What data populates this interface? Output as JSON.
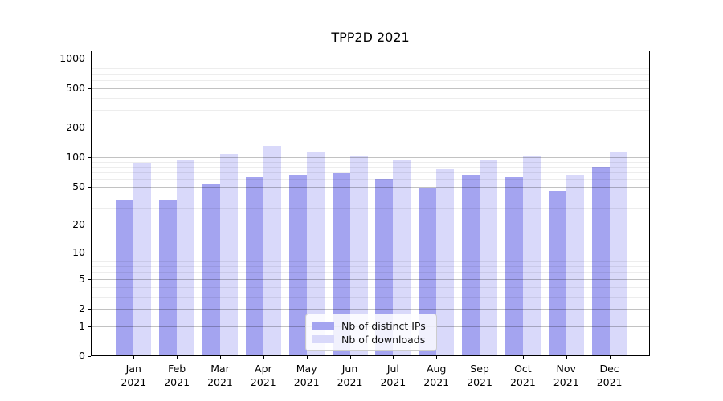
{
  "title": "TPP2D 2021",
  "chart_data": {
    "type": "bar",
    "title": "TPP2D 2021",
    "categories": [
      "Jan 2021",
      "Feb 2021",
      "Mar 2021",
      "Apr 2021",
      "May 2021",
      "Jun 2021",
      "Jul 2021",
      "Aug 2021",
      "Sep 2021",
      "Oct 2021",
      "Nov 2021",
      "Dec 2021"
    ],
    "months": [
      "Jan",
      "Feb",
      "Mar",
      "Apr",
      "May",
      "Jun",
      "Jul",
      "Aug",
      "Sep",
      "Oct",
      "Nov",
      "Dec"
    ],
    "year": "2021",
    "series": [
      {
        "name": "Nb of distinct IPs",
        "color": "#a4a4f0",
        "values": [
          37,
          37,
          54,
          63,
          66,
          68,
          60,
          48,
          66,
          62,
          45,
          80
        ]
      },
      {
        "name": "Nb of downloads",
        "color": "#d9d9fa",
        "values": [
          88,
          94,
          107,
          130,
          114,
          102,
          95,
          76,
          94,
          102,
          66,
          115
        ]
      }
    ],
    "xlabel": "",
    "ylabel": "",
    "yscale": "symlog",
    "yticks": [
      0,
      1,
      2,
      5,
      10,
      20,
      50,
      100,
      200,
      500,
      1000
    ],
    "minor_gridlines": [
      3,
      4,
      6,
      7,
      8,
      9,
      30,
      40,
      60,
      70,
      80,
      90,
      300,
      400,
      600,
      700,
      800,
      900
    ],
    "ylim": [
      0,
      1200
    ],
    "grid": true,
    "legend_position": "lower center"
  }
}
